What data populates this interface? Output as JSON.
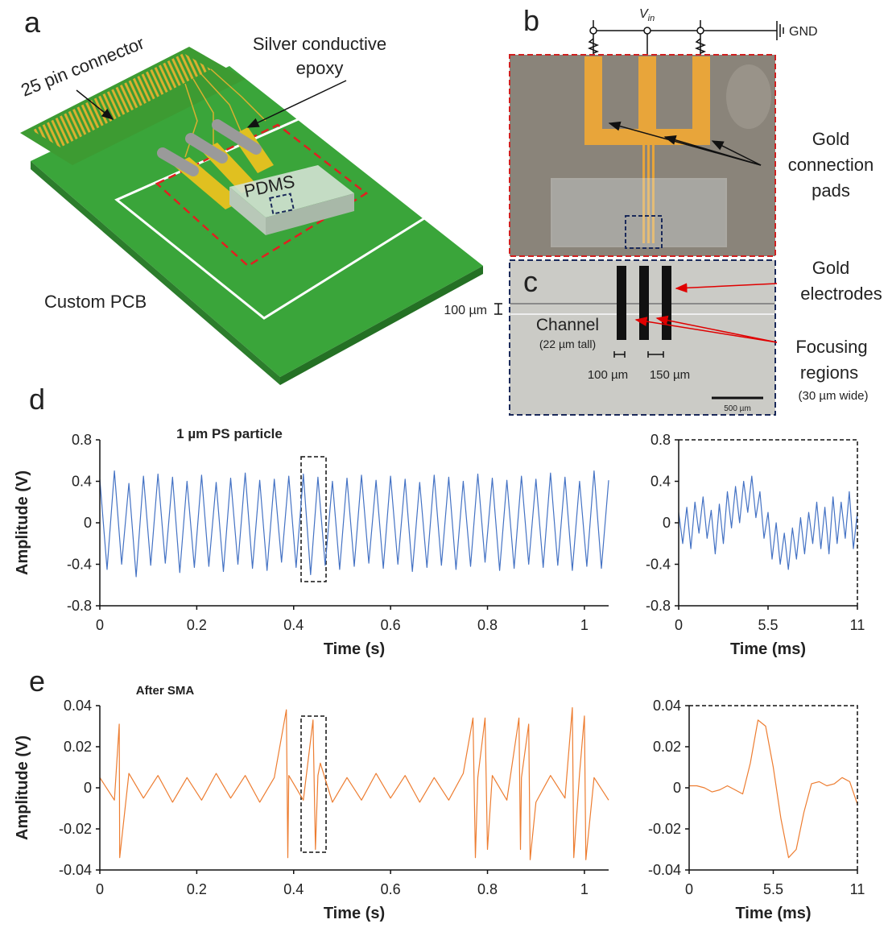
{
  "panel_labels": [
    "a",
    "b",
    "c",
    "d",
    "e"
  ],
  "panel_a": {
    "connector": "25 pin connector",
    "epoxy": [
      "Silver conductive",
      "epoxy"
    ],
    "pdms": "PDMS",
    "pcb": "Custom PCB"
  },
  "panel_b": {
    "vin": "V",
    "vin_sub": "in",
    "gnd": "GND",
    "pads": [
      "Gold",
      "connection",
      "pads"
    ]
  },
  "panel_c": {
    "electrodes": [
      "Gold",
      "electrodes"
    ],
    "channel_height": "100 µm",
    "channel": "Channel",
    "channel_note": "(22 µm tall)",
    "gap1": "100 µm",
    "gap2": "150 µm",
    "scale": "500 µm",
    "focusing": [
      "Focusing",
      "regions"
    ],
    "focusing_note": "(30 µm wide)"
  },
  "chart_data": [
    {
      "type": "line",
      "title": "1 µm PS particle",
      "x_label": "Time (s)",
      "y_label": "Amplitude (V)",
      "color": "#4472c4",
      "xlim": [
        0,
        1.05
      ],
      "ylim": [
        -0.8,
        0.8
      ],
      "xticks": [
        0,
        0.2,
        0.4,
        0.6,
        0.8,
        1
      ],
      "yticks": [
        -0.8,
        -0.4,
        0,
        0.4,
        0.8
      ],
      "x": [
        0,
        0.015,
        0.03,
        0.045,
        0.06,
        0.075,
        0.09,
        0.105,
        0.12,
        0.135,
        0.15,
        0.165,
        0.18,
        0.195,
        0.21,
        0.225,
        0.24,
        0.255,
        0.27,
        0.285,
        0.3,
        0.315,
        0.33,
        0.345,
        0.36,
        0.375,
        0.39,
        0.405,
        0.42,
        0.435,
        0.45,
        0.465,
        0.48,
        0.495,
        0.51,
        0.525,
        0.54,
        0.555,
        0.57,
        0.585,
        0.6,
        0.615,
        0.63,
        0.645,
        0.66,
        0.675,
        0.69,
        0.705,
        0.72,
        0.735,
        0.75,
        0.765,
        0.78,
        0.795,
        0.81,
        0.825,
        0.84,
        0.855,
        0.87,
        0.885,
        0.9,
        0.915,
        0.93,
        0.945,
        0.96,
        0.975,
        0.99,
        1.005,
        1.02,
        1.035,
        1.05
      ],
      "values": [
        0.42,
        -0.45,
        0.5,
        -0.4,
        0.38,
        -0.52,
        0.45,
        -0.41,
        0.47,
        -0.39,
        0.44,
        -0.48,
        0.4,
        -0.43,
        0.46,
        -0.42,
        0.39,
        -0.47,
        0.43,
        -0.4,
        0.48,
        -0.44,
        0.41,
        -0.46,
        0.42,
        -0.38,
        0.45,
        -0.43,
        0.47,
        -0.5,
        0.44,
        -0.41,
        0.4,
        -0.45,
        0.43,
        -0.42,
        0.46,
        -0.39,
        0.41,
        -0.44,
        0.45,
        -0.4,
        0.42,
        -0.47,
        0.39,
        -0.43,
        0.46,
        -0.41,
        0.44,
        -0.45,
        0.4,
        -0.42,
        0.47,
        -0.38,
        0.43,
        -0.46,
        0.41,
        -0.44,
        0.45,
        -0.4,
        0.42,
        -0.43,
        0.48,
        -0.41,
        0.44,
        -0.46,
        0.4,
        -0.42,
        0.5,
        -0.44,
        0.41
      ]
    },
    {
      "type": "line",
      "x_label": "Time (ms)",
      "color": "#4472c4",
      "xlim": [
        0,
        11
      ],
      "ylim": [
        -0.8,
        0.8
      ],
      "xticks": [
        0,
        5.5,
        11
      ],
      "yticks": [
        -0.8,
        -0.4,
        0,
        0.4,
        0.8
      ],
      "x": [
        0,
        0.25,
        0.5,
        0.75,
        1,
        1.25,
        1.5,
        1.75,
        2,
        2.25,
        2.5,
        2.75,
        3,
        3.25,
        3.5,
        3.75,
        4,
        4.25,
        4.5,
        4.75,
        5,
        5.25,
        5.5,
        5.75,
        6,
        6.25,
        6.5,
        6.75,
        7,
        7.25,
        7.5,
        7.75,
        8,
        8.25,
        8.5,
        8.75,
        9,
        9.25,
        9.5,
        9.75,
        10,
        10.25,
        10.5,
        10.75,
        11
      ],
      "values": [
        0.1,
        -0.2,
        0.15,
        -0.25,
        0.2,
        -0.1,
        0.25,
        -0.15,
        0.12,
        -0.3,
        0.18,
        -0.2,
        0.3,
        -0.05,
        0.35,
        0,
        0.4,
        0.1,
        0.45,
        0.05,
        0.3,
        -0.15,
        0.1,
        -0.35,
        0,
        -0.4,
        -0.1,
        -0.45,
        -0.05,
        -0.35,
        0.05,
        -0.3,
        0.1,
        -0.2,
        0.2,
        -0.25,
        0.15,
        -0.3,
        0.25,
        -0.2,
        0.2,
        -0.15,
        0.3,
        -0.25,
        0.1
      ]
    },
    {
      "type": "line",
      "title": "After SMA",
      "x_label": "Time (s)",
      "y_label": "Amplitude (V)",
      "color": "#ed7d31",
      "xlim": [
        0,
        1.05
      ],
      "ylim": [
        -0.04,
        0.04
      ],
      "xticks": [
        0,
        0.2,
        0.4,
        0.6,
        0.8,
        1
      ],
      "yticks": [
        -0.04,
        -0.02,
        0,
        0.02,
        0.04
      ],
      "x": [
        0,
        0.03,
        0.04,
        0.041,
        0.06,
        0.09,
        0.12,
        0.15,
        0.18,
        0.21,
        0.24,
        0.27,
        0.3,
        0.33,
        0.36,
        0.385,
        0.388,
        0.39,
        0.42,
        0.44,
        0.445,
        0.45,
        0.455,
        0.48,
        0.51,
        0.54,
        0.57,
        0.6,
        0.63,
        0.66,
        0.69,
        0.72,
        0.75,
        0.77,
        0.775,
        0.78,
        0.795,
        0.8,
        0.81,
        0.84,
        0.865,
        0.868,
        0.87,
        0.885,
        0.888,
        0.9,
        0.93,
        0.96,
        0.975,
        0.978,
        0.99,
        1,
        1.003,
        1.02,
        1.05
      ],
      "values": [
        0.005,
        -0.006,
        0.031,
        -0.034,
        0.007,
        -0.005,
        0.006,
        -0.007,
        0.005,
        -0.006,
        0.007,
        -0.005,
        0.006,
        -0.007,
        0.005,
        0.038,
        -0.034,
        0.006,
        -0.006,
        0.033,
        -0.03,
        0.006,
        0.012,
        -0.007,
        0.005,
        -0.006,
        0.007,
        -0.005,
        0.006,
        -0.007,
        0.005,
        -0.006,
        0.007,
        0.034,
        -0.034,
        0.005,
        0.034,
        -0.03,
        0.006,
        -0.006,
        0.034,
        -0.03,
        0.005,
        0.031,
        -0.035,
        -0.007,
        0.006,
        -0.005,
        0.039,
        -0.034,
        0.007,
        0.035,
        -0.035,
        0.005,
        -0.006
      ]
    },
    {
      "type": "line",
      "x_label": "Time (ms)",
      "color": "#ed7d31",
      "xlim": [
        0,
        11
      ],
      "ylim": [
        -0.04,
        0.04
      ],
      "xticks": [
        0,
        5.5,
        11
      ],
      "yticks": [
        -0.04,
        -0.02,
        0,
        0.02,
        0.04
      ],
      "x": [
        0,
        0.5,
        1,
        1.5,
        2,
        2.5,
        3,
        3.5,
        4,
        4.5,
        5,
        5.5,
        6,
        6.5,
        7,
        7.5,
        8,
        8.5,
        9,
        9.5,
        10,
        10.5,
        11
      ],
      "values": [
        0.001,
        0.001,
        0,
        -0.002,
        -0.001,
        0.001,
        -0.001,
        -0.003,
        0.012,
        0.033,
        0.03,
        0.01,
        -0.015,
        -0.034,
        -0.03,
        -0.012,
        0.002,
        0.003,
        0.001,
        0.002,
        0.005,
        0.003,
        -0.008
      ]
    }
  ]
}
